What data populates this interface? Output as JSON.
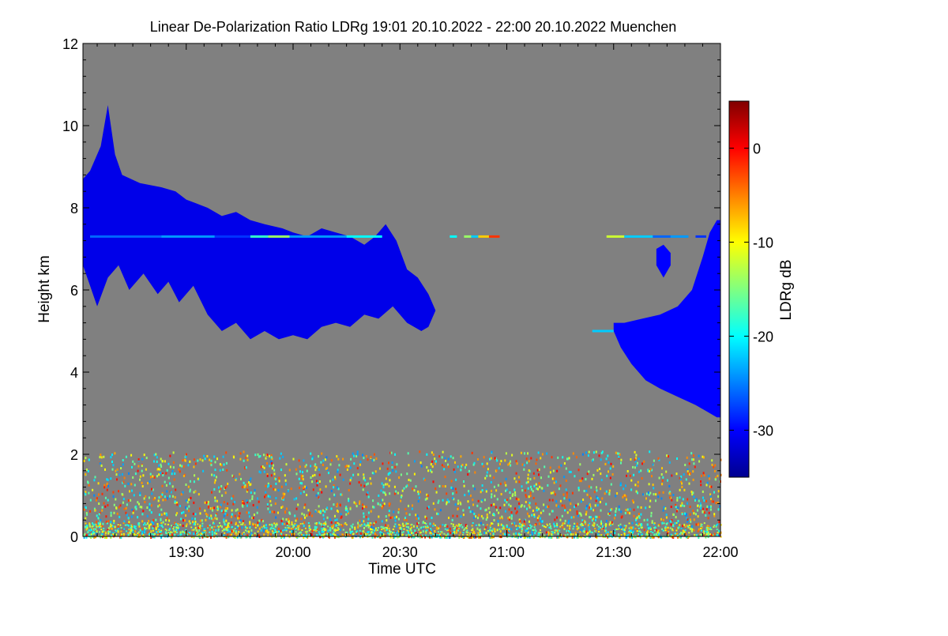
{
  "chart_data": {
    "type": "heatmap",
    "title": "Linear De-Polarization Ratio LDRg   19:01 20.10.2022 - 22:00 20.10.2022 Muenchen",
    "xlabel": "Time UTC",
    "ylabel": "Height km",
    "colorbar_label": "LDRg dB",
    "x_range_minutes": [
      1141,
      1320
    ],
    "y_range_km": [
      0,
      12
    ],
    "x_ticks": [
      {
        "minute": 1170,
        "label": "19:30"
      },
      {
        "minute": 1200,
        "label": "20:00"
      },
      {
        "minute": 1230,
        "label": "20:30"
      },
      {
        "minute": 1260,
        "label": "21:00"
      },
      {
        "minute": 1290,
        "label": "21:30"
      },
      {
        "minute": 1320,
        "label": "22:00"
      }
    ],
    "y_ticks": [
      {
        "value": 0,
        "label": "0"
      },
      {
        "value": 2,
        "label": "2"
      },
      {
        "value": 4,
        "label": "4"
      },
      {
        "value": 6,
        "label": "6"
      },
      {
        "value": 8,
        "label": "8"
      },
      {
        "value": 10,
        "label": "10"
      },
      {
        "value": 12,
        "label": "12"
      }
    ],
    "colorbar_range_db": [
      -35,
      5
    ],
    "colorbar_ticks": [
      {
        "value": 0,
        "label": "0"
      },
      {
        "value": -10,
        "label": "-10"
      },
      {
        "value": -20,
        "label": "-20"
      },
      {
        "value": -30,
        "label": "-30"
      }
    ],
    "colormap": [
      "#00008f",
      "#0000ff",
      "#0080ff",
      "#00ffff",
      "#80ff80",
      "#ffff00",
      "#ff8000",
      "#ff0000",
      "#800000"
    ],
    "background_color": "#808080",
    "features": [
      {
        "name": "cirrus-west",
        "ldr_db": -31,
        "upper": [
          [
            1141,
            8.7
          ],
          [
            1143,
            8.9
          ],
          [
            1146,
            9.5
          ],
          [
            1148,
            10.5
          ],
          [
            1150,
            9.3
          ],
          [
            1152,
            8.8
          ],
          [
            1157,
            8.6
          ],
          [
            1163,
            8.5
          ],
          [
            1167,
            8.4
          ],
          [
            1170,
            8.2
          ],
          [
            1173,
            8.1
          ],
          [
            1176,
            8.0
          ],
          [
            1180,
            7.8
          ],
          [
            1184,
            7.9
          ],
          [
            1188,
            7.7
          ],
          [
            1192,
            7.6
          ],
          [
            1197,
            7.5
          ],
          [
            1200,
            7.4
          ],
          [
            1204,
            7.3
          ],
          [
            1208,
            7.5
          ],
          [
            1212,
            7.4
          ],
          [
            1216,
            7.3
          ],
          [
            1220,
            7.1
          ],
          [
            1223,
            7.3
          ],
          [
            1226,
            7.6
          ],
          [
            1229,
            7.2
          ],
          [
            1232,
            6.5
          ],
          [
            1235,
            6.3
          ],
          [
            1238,
            5.9
          ],
          [
            1240,
            5.5
          ]
        ],
        "lower": [
          [
            1141,
            6.6
          ],
          [
            1143,
            6.1
          ],
          [
            1145,
            5.6
          ],
          [
            1148,
            6.3
          ],
          [
            1151,
            6.6
          ],
          [
            1154,
            6.0
          ],
          [
            1158,
            6.4
          ],
          [
            1162,
            5.9
          ],
          [
            1165,
            6.2
          ],
          [
            1168,
            5.7
          ],
          [
            1172,
            6.1
          ],
          [
            1176,
            5.4
          ],
          [
            1180,
            5.0
          ],
          [
            1184,
            5.2
          ],
          [
            1188,
            4.8
          ],
          [
            1192,
            5.0
          ],
          [
            1196,
            4.8
          ],
          [
            1200,
            4.9
          ],
          [
            1204,
            4.8
          ],
          [
            1208,
            5.1
          ],
          [
            1212,
            5.2
          ],
          [
            1216,
            5.1
          ],
          [
            1220,
            5.4
          ],
          [
            1224,
            5.3
          ],
          [
            1228,
            5.6
          ],
          [
            1232,
            5.2
          ],
          [
            1236,
            5.0
          ],
          [
            1238,
            5.1
          ],
          [
            1240,
            5.5
          ]
        ]
      },
      {
        "name": "cloud-east",
        "ldr_db": -30,
        "upper": [
          [
            1290,
            5.2
          ],
          [
            1293,
            5.2
          ],
          [
            1298,
            5.3
          ],
          [
            1303,
            5.4
          ],
          [
            1308,
            5.6
          ],
          [
            1312,
            6.0
          ],
          [
            1315,
            6.8
          ],
          [
            1317,
            7.4
          ],
          [
            1319,
            7.7
          ],
          [
            1320,
            7.7
          ]
        ],
        "lower": [
          [
            1290,
            5.0
          ],
          [
            1292,
            4.6
          ],
          [
            1295,
            4.2
          ],
          [
            1299,
            3.8
          ],
          [
            1303,
            3.6
          ],
          [
            1308,
            3.4
          ],
          [
            1313,
            3.2
          ],
          [
            1317,
            3.0
          ],
          [
            1319,
            2.9
          ],
          [
            1320,
            2.9
          ]
        ]
      },
      {
        "name": "cloud-east-fragment",
        "ldr_db": -30,
        "upper": [
          [
            1302,
            7.0
          ],
          [
            1304,
            7.1
          ],
          [
            1306,
            6.9
          ]
        ],
        "lower": [
          [
            1302,
            6.6
          ],
          [
            1304,
            6.3
          ],
          [
            1306,
            6.6
          ]
        ]
      }
    ],
    "streaks": [
      {
        "from": 1143,
        "to": 1163,
        "height": 7.3,
        "ldr_db": -26
      },
      {
        "from": 1163,
        "to": 1178,
        "height": 7.3,
        "ldr_db": -24
      },
      {
        "from": 1178,
        "to": 1188,
        "height": 7.3,
        "ldr_db": -28
      },
      {
        "from": 1188,
        "to": 1193,
        "height": 7.3,
        "ldr_db": -18
      },
      {
        "from": 1193,
        "to": 1199,
        "height": 7.3,
        "ldr_db": -14
      },
      {
        "from": 1199,
        "to": 1215,
        "height": 7.3,
        "ldr_db": -24
      },
      {
        "from": 1215,
        "to": 1225,
        "height": 7.3,
        "ldr_db": -20
      },
      {
        "from": 1244,
        "to": 1246,
        "height": 7.3,
        "ldr_db": -20
      },
      {
        "from": 1248,
        "to": 1250,
        "height": 7.3,
        "ldr_db": -14
      },
      {
        "from": 1250,
        "to": 1252,
        "height": 7.3,
        "ldr_db": -22
      },
      {
        "from": 1252,
        "to": 1255,
        "height": 7.3,
        "ldr_db": -8
      },
      {
        "from": 1255,
        "to": 1258,
        "height": 7.3,
        "ldr_db": -2
      },
      {
        "from": 1288,
        "to": 1293,
        "height": 7.3,
        "ldr_db": -12
      },
      {
        "from": 1293,
        "to": 1301,
        "height": 7.3,
        "ldr_db": -22
      },
      {
        "from": 1301,
        "to": 1306,
        "height": 7.3,
        "ldr_db": -26
      },
      {
        "from": 1306,
        "to": 1311,
        "height": 7.3,
        "ldr_db": -24
      },
      {
        "from": 1313,
        "to": 1316,
        "height": 7.3,
        "ldr_db": -28
      },
      {
        "from": 1284,
        "to": 1290,
        "height": 5.0,
        "ldr_db": -22
      }
    ],
    "boundary_layer": {
      "top_km": 2.1,
      "ldr_db_range": [
        -25,
        0
      ]
    }
  }
}
